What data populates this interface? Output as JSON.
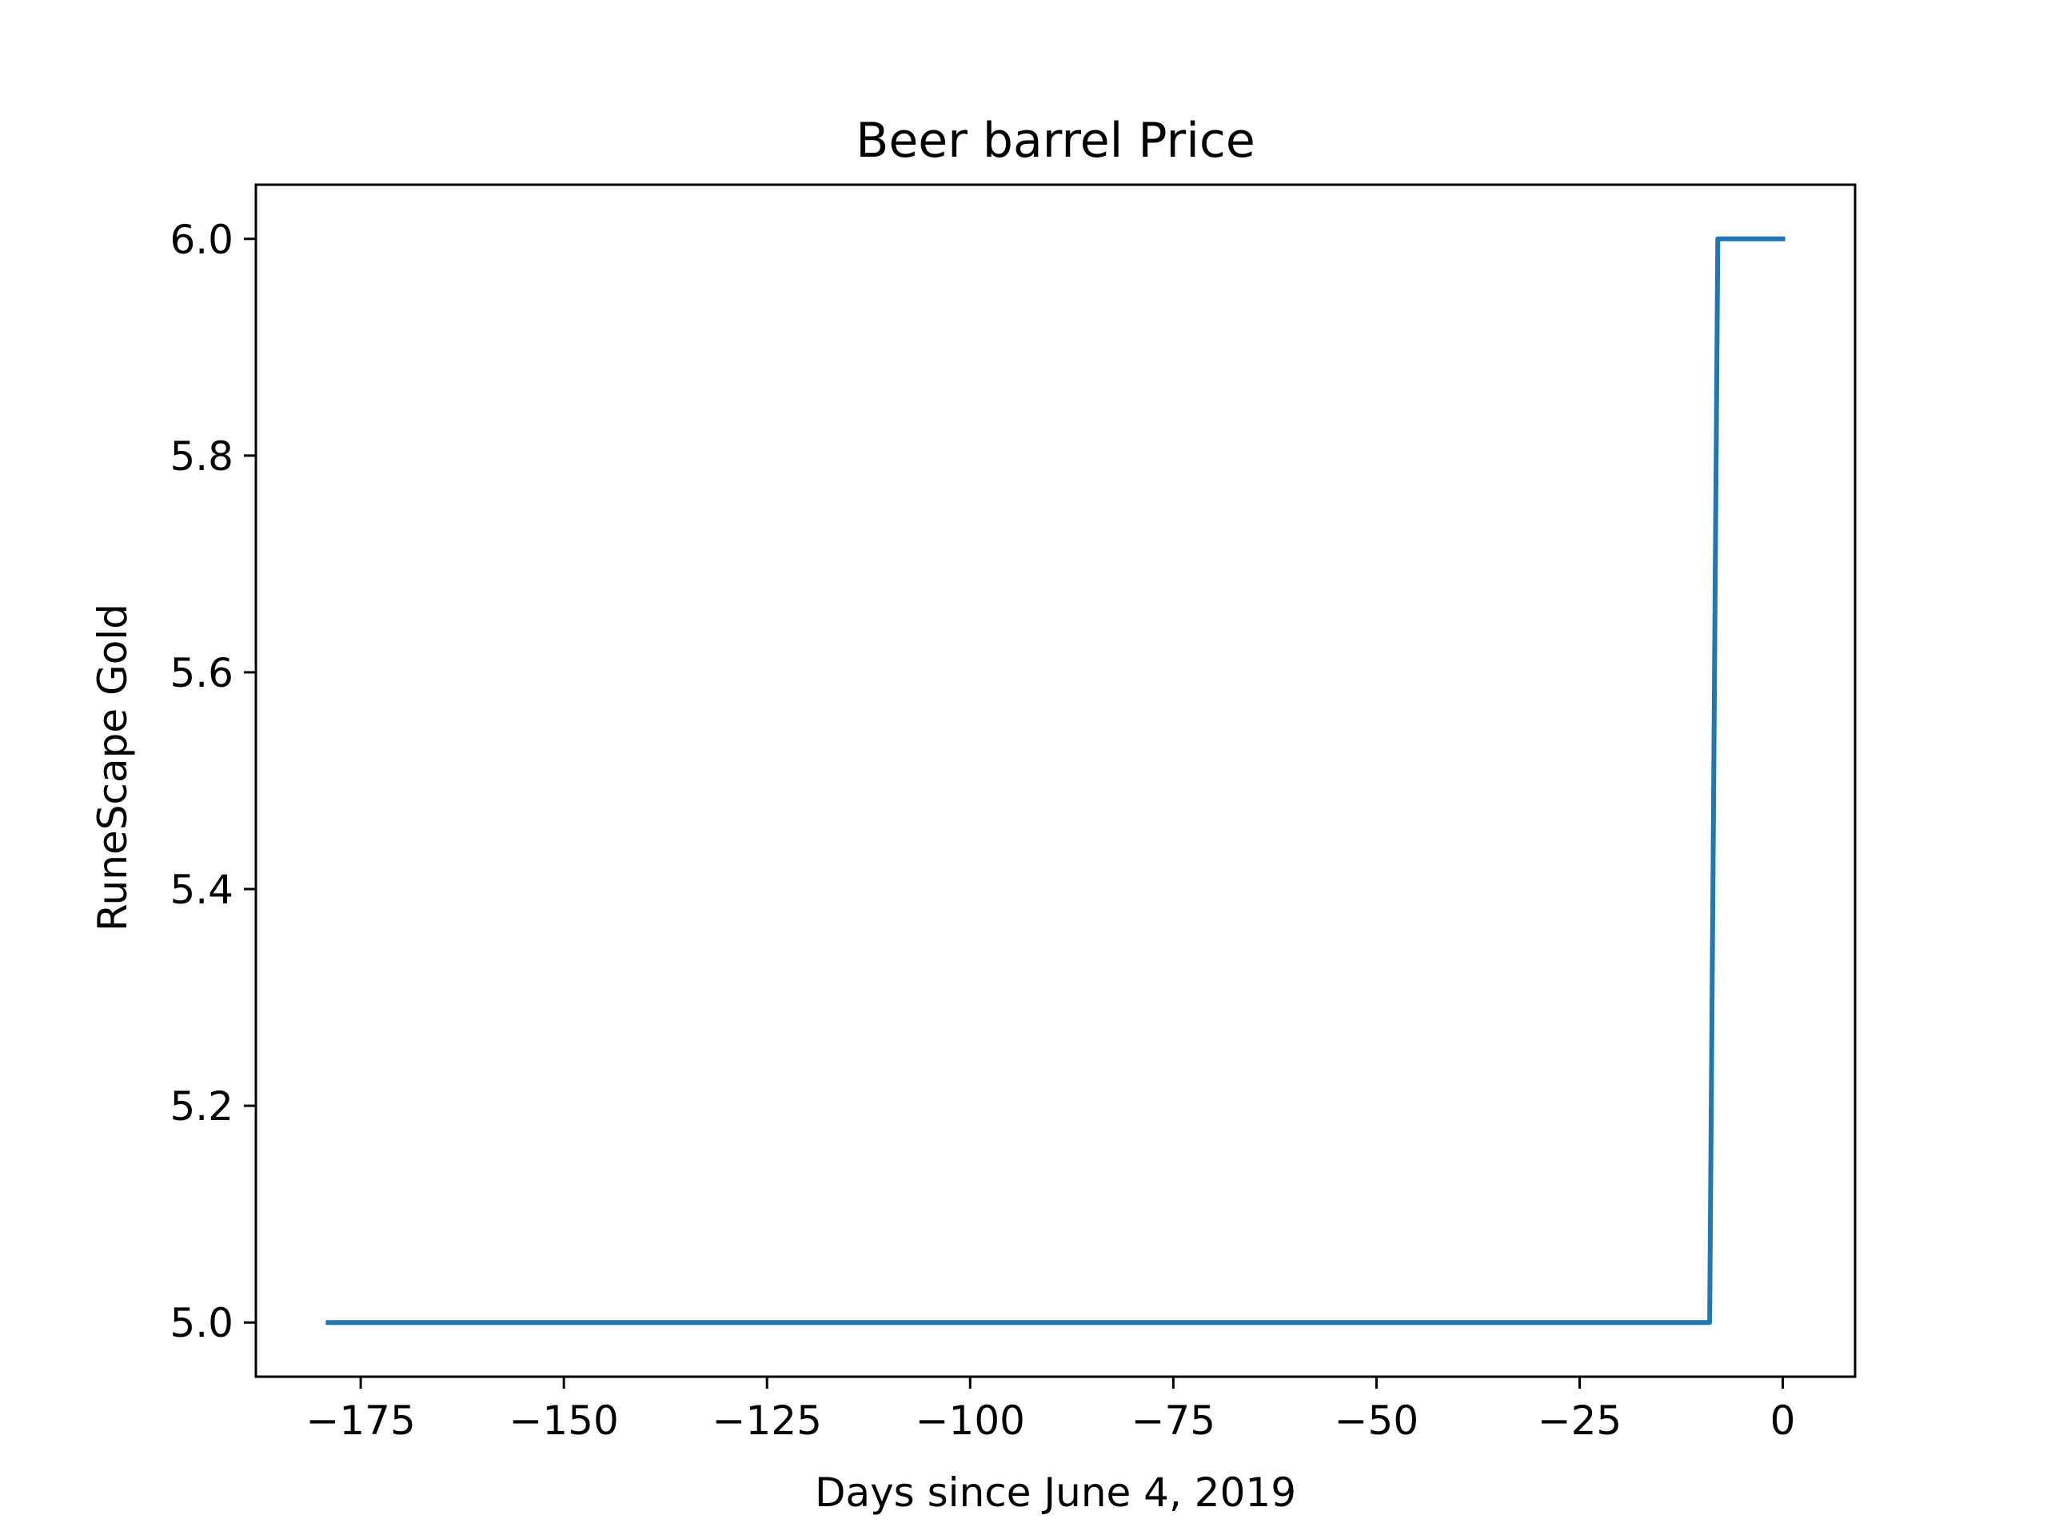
{
  "chart_data": {
    "type": "line",
    "title": "Beer barrel Price",
    "xlabel": "Days since June 4, 2019",
    "ylabel": "RuneScape Gold",
    "xlim": [
      -187.9,
      8.9
    ],
    "ylim": [
      4.95,
      6.05
    ],
    "xticks": [
      -175,
      -150,
      -125,
      -100,
      -75,
      -50,
      -25,
      0
    ],
    "xtick_labels": [
      "−175",
      "−150",
      "−125",
      "−100",
      "−75",
      "−50",
      "−25",
      "0"
    ],
    "yticks": [
      5.0,
      5.2,
      5.4,
      5.6,
      5.8,
      6.0
    ],
    "ytick_labels": [
      "5.0",
      "5.2",
      "5.4",
      "5.6",
      "5.8",
      "6.0"
    ],
    "grid": false,
    "series": [
      {
        "color": "#1f77b4",
        "x": [
          -179,
          -9,
          -8,
          0
        ],
        "y": [
          5.0,
          5.0,
          6.0,
          6.0
        ]
      }
    ]
  }
}
